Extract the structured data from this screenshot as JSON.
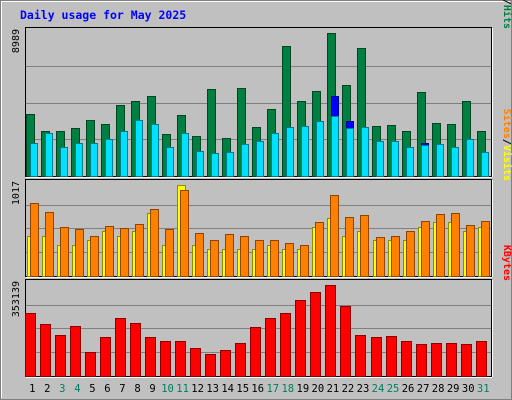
{
  "chart_data": {
    "type": "bar",
    "title": "Daily usage for May 2025",
    "categories": [
      "1",
      "2",
      "3",
      "4",
      "5",
      "6",
      "7",
      "8",
      "9",
      "10",
      "11",
      "12",
      "13",
      "14",
      "15",
      "16",
      "17",
      "18",
      "19",
      "20",
      "21",
      "22",
      "23",
      "24",
      "25",
      "26",
      "27",
      "28",
      "29",
      "30",
      "31"
    ],
    "weekend_days": [
      "3",
      "4",
      "10",
      "11",
      "17",
      "18",
      "24",
      "25",
      "31"
    ],
    "colors": {
      "hits": "#008040",
      "files": "#0000ff",
      "pages": "#00e0ff",
      "visits": "#ffff00",
      "sites": "#ff8000",
      "kbytes": "#ff0000",
      "weekday_label": "#000000",
      "weekend_label": "#00805c",
      "title": "#0000ff",
      "background": "#c0c0c0"
    },
    "panels": [
      {
        "id": "top",
        "max_label": "8989",
        "ylim": [
          0,
          8989
        ],
        "legend": [
          "Pages",
          "/",
          "Files",
          "/",
          "Hits"
        ],
        "series": [
          {
            "name": "Hits",
            "values": [
              3900,
              2800,
              2800,
              3000,
              3500,
              3300,
              4450,
              4700,
              5000,
              2650,
              3850,
              2500,
              5450,
              2400,
              5550,
              3100,
              4200,
              8150,
              4700,
              5350,
              8989,
              5700,
              8050,
              3150,
              3200,
              2800,
              5300,
              3350,
              3300,
              4700,
              2800
            ]
          },
          {
            "name": "Files",
            "values": [
              2050,
              2700,
              1850,
              2050,
              2100,
              2350,
              2800,
              3500,
              3300,
              1850,
              2700,
              1600,
              1450,
              1500,
              2000,
              2200,
              2700,
              3100,
              3150,
              3450,
              5000,
              3450,
              3100,
              2200,
              2200,
              1800,
              2100,
              2000,
              1850,
              2300,
              1500
            ]
          },
          {
            "name": "Pages",
            "values": [
              2050,
              2700,
              1850,
              2050,
              2100,
              2350,
              2800,
              3500,
              3300,
              1850,
              2700,
              1600,
              1450,
              1500,
              2000,
              2200,
              2700,
              3100,
              3150,
              3450,
              3750,
              3000,
              3100,
              2200,
              2200,
              1800,
              1950,
              2000,
              1850,
              2300,
              1500
            ]
          }
        ]
      },
      {
        "id": "mid",
        "max_label": "1017",
        "ylim": [
          0,
          1017
        ],
        "legend": [
          "Sites",
          "/",
          "Visits"
        ],
        "series": [
          {
            "name": "Visits",
            "values": [
              450,
              450,
              350,
              350,
              400,
              500,
              450,
              500,
              700,
              350,
              1017,
              350,
              300,
              300,
              300,
              300,
              350,
              300,
              300,
              550,
              650,
              450,
              500,
              400,
              400,
              400,
              550,
              600,
              600,
              500,
              550
            ]
          },
          {
            "name": "Sites",
            "values": [
              820,
              720,
              550,
              520,
              450,
              560,
              540,
              580,
              750,
              520,
              960,
              480,
              400,
              470,
              450,
              400,
              400,
              370,
              350,
              600,
              910,
              660,
              680,
              440,
              450,
              500,
              620,
              690,
              700,
              570,
              620
            ]
          }
        ]
      },
      {
        "id": "bottom",
        "max_label": "353139",
        "ylim": [
          0,
          353139
        ],
        "legend": [
          "KBytes"
        ],
        "series": [
          {
            "name": "KBytes",
            "values": [
              245000,
              200000,
              160000,
              195000,
              95000,
              150000,
              225000,
              205000,
              150000,
              135000,
              135000,
              110000,
              85000,
              100000,
              130000,
              190000,
              225000,
              245000,
              295000,
              325000,
              353139,
              270000,
              160000,
              150000,
              155000,
              135000,
              125000,
              130000,
              130000,
              125000,
              135000
            ]
          }
        ]
      }
    ]
  }
}
